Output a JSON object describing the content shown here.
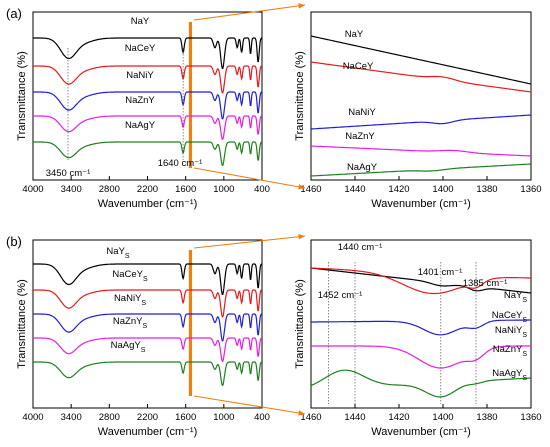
{
  "panels": [
    "(a)",
    "(b)"
  ],
  "chart_data": [
    {
      "type": "line",
      "panel": "(a)",
      "side": "left",
      "xlabel": "Wavenumber (cm⁻¹)",
      "ylabel": "Transmittance (%)",
      "xlim": [
        4000,
        400
      ],
      "x_reversed": true,
      "xticks": [
        4000,
        3400,
        2800,
        2200,
        1600,
        1000,
        400
      ],
      "grid": false,
      "series": [
        {
          "name": "NaY",
          "color": "#000000"
        },
        {
          "name": "NaCeY",
          "color": "#e41a1c"
        },
        {
          "name": "NaNiY",
          "color": "#1f1fd6"
        },
        {
          "name": "NaZnY",
          "color": "#e51ee5"
        },
        {
          "name": "NaAgY",
          "color": "#208020"
        }
      ],
      "annotations": [
        {
          "text": "3450 cm⁻¹",
          "x": 3450
        },
        {
          "text": "1640 cm⁻¹",
          "x": 1640
        }
      ],
      "highlight_band": [
        1550,
        1500
      ]
    },
    {
      "type": "line",
      "panel": "(a)",
      "side": "right",
      "xlabel": "Wavenumber (cm⁻¹)",
      "ylabel": "Transmittance (%)",
      "xlim": [
        1460,
        1360
      ],
      "x_reversed": true,
      "xticks": [
        1460,
        1440,
        1420,
        1400,
        1380,
        1360
      ],
      "grid": false,
      "series": [
        {
          "name": "NaY",
          "color": "#000000"
        },
        {
          "name": "NaCeY",
          "color": "#e41a1c"
        },
        {
          "name": "NaNiY",
          "color": "#1f1fd6"
        },
        {
          "name": "NaZnY",
          "color": "#e51ee5"
        },
        {
          "name": "NaAgY",
          "color": "#208020"
        }
      ]
    },
    {
      "type": "line",
      "panel": "(b)",
      "side": "left",
      "xlabel": "Wavenumber (cm⁻¹)",
      "ylabel": "Transmittance (%)",
      "xlim": [
        4000,
        400
      ],
      "x_reversed": true,
      "xticks": [
        4000,
        3400,
        2800,
        2200,
        1600,
        1000,
        400
      ],
      "grid": false,
      "series": [
        {
          "name": "NaY",
          "sub": "S",
          "color": "#000000"
        },
        {
          "name": "NaCeY",
          "sub": "S",
          "color": "#e41a1c"
        },
        {
          "name": "NaNiY",
          "sub": "S",
          "color": "#1f1fd6"
        },
        {
          "name": "NaZnY",
          "sub": "S",
          "color": "#e51ee5"
        },
        {
          "name": "NaAgY",
          "sub": "S",
          "color": "#208020"
        }
      ],
      "highlight_band": [
        1550,
        1500
      ]
    },
    {
      "type": "line",
      "panel": "(b)",
      "side": "right",
      "xlabel": "Wavenumber (cm⁻¹)",
      "ylabel": "Transmittance (%)",
      "xlim": [
        1460,
        1360
      ],
      "x_reversed": true,
      "xticks": [
        1460,
        1440,
        1420,
        1400,
        1380,
        1360
      ],
      "grid": false,
      "series": [
        {
          "name": "NaY",
          "sub": "S",
          "color": "#000000"
        },
        {
          "name": "NaCeY",
          "sub": "S",
          "color": "#e41a1c"
        },
        {
          "name": "NaNiY",
          "sub": "S",
          "color": "#1f1fd6"
        },
        {
          "name": "NaZnY",
          "sub": "S",
          "color": "#e51ee5"
        },
        {
          "name": "NaAgY",
          "sub": "S",
          "color": "#208020"
        }
      ],
      "annotations": [
        {
          "text": "1440 cm⁻¹",
          "x": 1440
        },
        {
          "text": "1452 cm⁻¹",
          "x": 1452
        },
        {
          "text": "1401 cm⁻¹",
          "x": 1401
        },
        {
          "text": "1385 cm⁻¹",
          "x": 1385
        }
      ]
    }
  ],
  "colors": {
    "highlight": "#f07f10",
    "guide": "#555555"
  }
}
